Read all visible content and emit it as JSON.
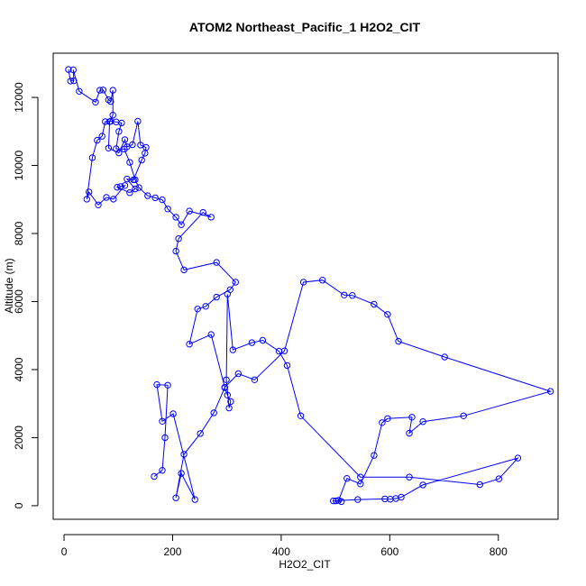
{
  "chart_data": {
    "type": "scatter",
    "title": "ATOM2 Northeast_Pacific_1 H2O2_CIT",
    "xlabel": "H2O2_CIT",
    "ylabel": "Altitude (m)",
    "xlim": [
      -20,
      910
    ],
    "ylim": [
      -400,
      13300
    ],
    "xticks": [
      0,
      200,
      400,
      600,
      800
    ],
    "yticks": [
      0,
      2000,
      4000,
      6000,
      8000,
      10000,
      12000
    ],
    "color": "#0000ff",
    "series": [
      {
        "x": [
          8,
          12,
          18,
          17,
          28,
          58,
          66,
          72,
          82,
          86,
          90,
          90,
          84,
          82,
          101,
          112,
          116,
          126,
          136,
          141,
          151,
          149,
          143,
          128,
          116,
          131,
          121,
          98,
          104,
          112,
          91,
          78,
          63,
          46,
          42,
          52,
          61,
          70,
          76,
          86,
          96,
          106,
          101,
          96,
          111,
          121,
          131,
          138,
          154,
          168,
          181,
          191,
          206,
          216,
          231,
          271,
          256,
          211,
          206,
          221,
          281,
          316,
          306,
          281,
          261,
          246,
          231,
          271,
          296,
          321,
          351,
          406,
          441,
          476,
          516,
          531,
          571,
          596,
          616,
          701,
          896,
          736,
          661,
          636,
          641,
          596,
          586,
          571,
          546,
          521,
          506,
          501,
          511,
          496,
          541,
          591,
          601,
          611,
          621,
          661,
          836,
          801,
          766,
          636,
          546,
          436,
          411,
          396,
          366,
          346,
          311,
          301,
          299,
          304,
          307,
          301,
          296,
          276,
          251,
          221,
          206,
          216,
          241,
          201,
          181,
          171,
          191,
          186,
          181,
          166
        ],
        "y": [
          12820,
          12480,
          12490,
          12810,
          12180,
          11860,
          12210,
          12220,
          11930,
          11880,
          12210,
          11480,
          11290,
          10510,
          10370,
          10760,
          10550,
          10610,
          11300,
          10600,
          10530,
          10360,
          10160,
          9580,
          9600,
          9310,
          9200,
          9360,
          9380,
          9410,
          9010,
          9060,
          8840,
          9220,
          9010,
          10230,
          10740,
          10860,
          11290,
          11300,
          11280,
          11250,
          11000,
          10490,
          10480,
          10090,
          9580,
          9350,
          9110,
          9050,
          8990,
          8720,
          8480,
          8260,
          8660,
          8480,
          8620,
          7850,
          7480,
          6930,
          7150,
          6570,
          6350,
          6130,
          5860,
          5780,
          4750,
          5030,
          3480,
          3880,
          3700,
          4550,
          6570,
          6630,
          6190,
          6180,
          5920,
          5620,
          4830,
          4370,
          3360,
          2640,
          2470,
          2130,
          2600,
          2560,
          2440,
          1480,
          640,
          800,
          160,
          140,
          120,
          140,
          180,
          200,
          190,
          210,
          250,
          610,
          1400,
          790,
          620,
          840,
          840,
          2640,
          4120,
          4540,
          4860,
          4790,
          4580,
          6220,
          3700,
          2870,
          3060,
          3250,
          3470,
          2730,
          2120,
          1510,
          230,
          950,
          180,
          2700,
          2480,
          3560,
          3540,
          2000,
          1040,
          860
        ]
      }
    ]
  }
}
